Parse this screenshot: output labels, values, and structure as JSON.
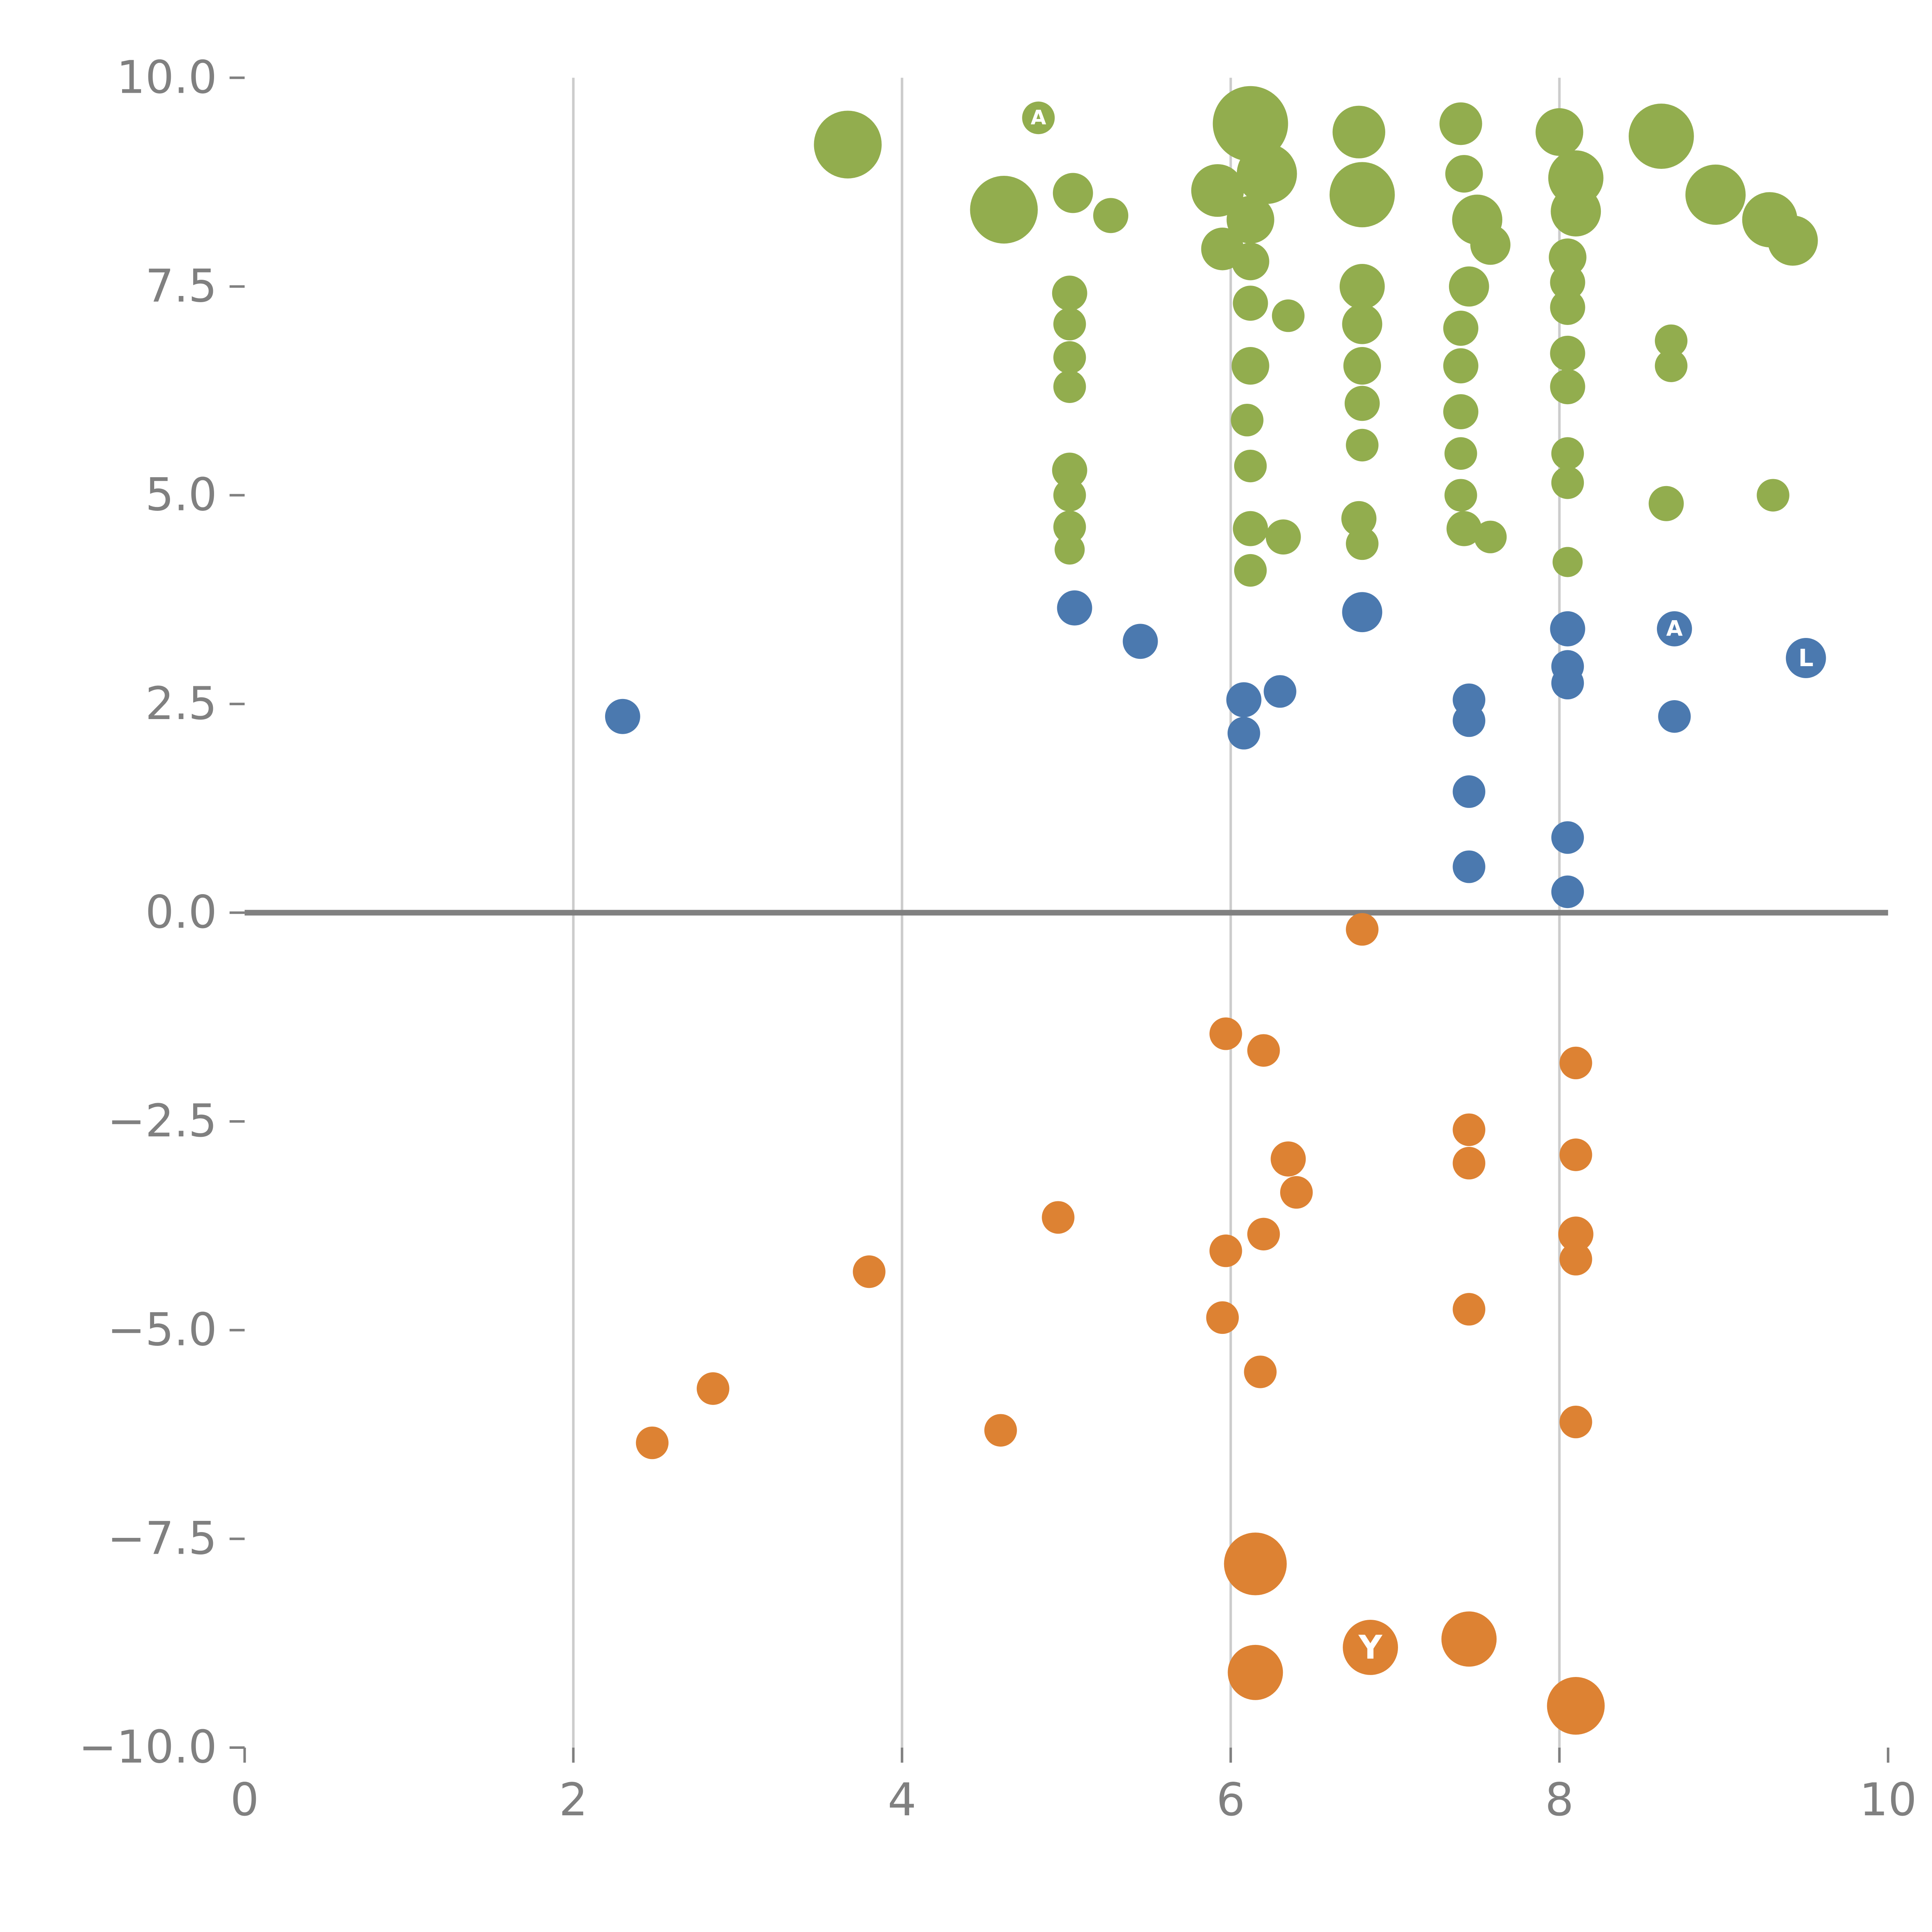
{
  "chart_data": {
    "type": "scatter",
    "title": "",
    "xlabel": "",
    "ylabel": "",
    "xlim": [
      0,
      10
    ],
    "ylim": [
      -10,
      10
    ],
    "grid": "vertical-gridlines-only",
    "grid_x": [
      2,
      4,
      6,
      8
    ],
    "legend": "none",
    "zero_line": true,
    "colors": {
      "grid": "#cccccc",
      "zero_line": "#808080",
      "tick": "#808080",
      "tick_label": "#808080",
      "bubble_label": "#ffffff",
      "background": "#ffffff"
    },
    "x_ticks": [
      {
        "value": 0,
        "label": "0"
      },
      {
        "value": 2,
        "label": "2"
      },
      {
        "value": 4,
        "label": "4"
      },
      {
        "value": 6,
        "label": "6"
      },
      {
        "value": 8,
        "label": "8"
      },
      {
        "value": 10,
        "label": "10"
      }
    ],
    "y_ticks": [
      {
        "value": -10,
        "label": "−10.0"
      },
      {
        "value": -7.5,
        "label": "−7.5"
      },
      {
        "value": -5,
        "label": "−5.0"
      },
      {
        "value": -2.5,
        "label": "−2.5"
      },
      {
        "value": 0,
        "label": "0.0"
      },
      {
        "value": 2.5,
        "label": "2.5"
      },
      {
        "value": 5,
        "label": "5.0"
      },
      {
        "value": 7.5,
        "label": "7.5"
      },
      {
        "value": 10,
        "label": "10.0"
      }
    ],
    "series": [
      {
        "name": "green",
        "color": "#92AD4E",
        "points": [
          [
            3.67,
            9.2,
            27
          ],
          [
            4.83,
            9.52,
            13,
            "A"
          ],
          [
            4.62,
            8.42,
            27
          ],
          [
            5.04,
            8.62,
            16
          ],
          [
            5.27,
            8.35,
            14
          ],
          [
            5.02,
            7.42,
            14
          ],
          [
            5.02,
            7.05,
            13
          ],
          [
            5.02,
            6.65,
            13
          ],
          [
            5.02,
            6.3,
            13
          ],
          [
            5.02,
            5.3,
            14
          ],
          [
            5.02,
            5.0,
            13
          ],
          [
            5.02,
            4.62,
            13
          ],
          [
            5.02,
            4.35,
            12
          ],
          [
            5.92,
            8.65,
            21
          ],
          [
            5.95,
            7.95,
            17
          ],
          [
            6.12,
            9.45,
            30
          ],
          [
            6.22,
            8.85,
            24
          ],
          [
            6.12,
            8.3,
            19
          ],
          [
            6.12,
            7.8,
            15
          ],
          [
            6.12,
            7.3,
            14
          ],
          [
            6.35,
            7.15,
            13
          ],
          [
            6.12,
            6.55,
            15
          ],
          [
            6.1,
            5.9,
            13
          ],
          [
            6.12,
            5.35,
            13
          ],
          [
            6.12,
            4.6,
            14
          ],
          [
            6.32,
            4.5,
            14
          ],
          [
            6.12,
            4.1,
            13
          ],
          [
            6.78,
            9.35,
            21
          ],
          [
            6.8,
            8.6,
            26
          ],
          [
            6.8,
            7.5,
            18
          ],
          [
            6.8,
            7.05,
            16
          ],
          [
            6.8,
            6.55,
            15
          ],
          [
            6.8,
            6.1,
            14
          ],
          [
            6.8,
            5.6,
            13
          ],
          [
            6.78,
            4.72,
            14
          ],
          [
            6.8,
            4.42,
            13
          ],
          [
            7.4,
            9.45,
            17
          ],
          [
            7.42,
            8.85,
            15
          ],
          [
            7.5,
            8.3,
            20
          ],
          [
            7.58,
            8.0,
            16
          ],
          [
            7.45,
            7.5,
            16
          ],
          [
            7.4,
            7.0,
            14
          ],
          [
            7.4,
            6.55,
            14
          ],
          [
            7.4,
            6.0,
            14
          ],
          [
            7.4,
            5.5,
            13
          ],
          [
            7.4,
            5.0,
            13
          ],
          [
            7.42,
            4.6,
            14
          ],
          [
            7.58,
            4.5,
            13
          ],
          [
            8.0,
            9.35,
            19
          ],
          [
            8.1,
            8.8,
            22
          ],
          [
            8.1,
            8.4,
            20
          ],
          [
            8.05,
            7.85,
            15
          ],
          [
            8.05,
            7.55,
            14
          ],
          [
            8.05,
            7.25,
            14
          ],
          [
            8.05,
            6.7,
            14
          ],
          [
            8.05,
            6.3,
            14
          ],
          [
            8.05,
            5.5,
            13
          ],
          [
            8.05,
            5.15,
            13
          ],
          [
            8.05,
            4.2,
            12
          ],
          [
            8.62,
            9.3,
            26
          ],
          [
            8.95,
            8.6,
            24
          ],
          [
            9.28,
            8.3,
            22
          ],
          [
            9.42,
            8.05,
            20
          ],
          [
            8.68,
            6.85,
            13
          ],
          [
            8.68,
            6.55,
            13
          ],
          [
            8.65,
            4.9,
            14
          ],
          [
            9.3,
            5.0,
            13
          ]
        ]
      },
      {
        "name": "blue",
        "color": "#4B79AF",
        "points": [
          [
            2.3,
            2.35,
            14
          ],
          [
            5.05,
            3.65,
            14
          ],
          [
            5.45,
            3.25,
            14
          ],
          [
            6.08,
            2.55,
            14
          ],
          [
            6.3,
            2.65,
            13
          ],
          [
            6.08,
            2.15,
            13
          ],
          [
            6.8,
            3.6,
            16
          ],
          [
            7.45,
            2.55,
            13
          ],
          [
            7.45,
            2.3,
            13
          ],
          [
            7.45,
            1.45,
            13
          ],
          [
            7.45,
            0.55,
            13
          ],
          [
            8.05,
            3.4,
            14
          ],
          [
            8.05,
            2.95,
            13
          ],
          [
            8.05,
            2.75,
            13
          ],
          [
            8.05,
            0.9,
            13
          ],
          [
            8.05,
            0.25,
            13
          ],
          [
            8.7,
            3.4,
            14,
            "A"
          ],
          [
            8.7,
            2.35,
            13
          ],
          [
            9.5,
            3.05,
            16,
            "L"
          ]
        ]
      },
      {
        "name": "orange",
        "color": "#DD8233",
        "points": [
          [
            6.8,
            -0.2,
            13
          ],
          [
            5.97,
            -1.45,
            13
          ],
          [
            6.2,
            -1.65,
            13
          ],
          [
            8.1,
            -1.8,
            13
          ],
          [
            6.35,
            -2.95,
            14
          ],
          [
            6.4,
            -3.35,
            13
          ],
          [
            7.45,
            -2.6,
            13
          ],
          [
            7.45,
            -3.0,
            13
          ],
          [
            8.1,
            -2.9,
            13
          ],
          [
            4.95,
            -3.65,
            13
          ],
          [
            6.2,
            -3.85,
            13
          ],
          [
            5.97,
            -4.05,
            13
          ],
          [
            8.1,
            -3.85,
            14
          ],
          [
            8.1,
            -4.15,
            13
          ],
          [
            3.8,
            -4.3,
            13
          ],
          [
            5.95,
            -4.85,
            13
          ],
          [
            7.45,
            -4.75,
            13
          ],
          [
            6.18,
            -5.5,
            13
          ],
          [
            2.85,
            -5.7,
            13
          ],
          [
            4.6,
            -6.2,
            13
          ],
          [
            2.48,
            -6.35,
            13
          ],
          [
            8.1,
            -6.1,
            13
          ],
          [
            6.15,
            -7.8,
            25
          ],
          [
            6.15,
            -9.1,
            22
          ],
          [
            6.85,
            -8.8,
            22,
            "Y"
          ],
          [
            7.45,
            -8.7,
            22
          ],
          [
            8.1,
            -9.5,
            23
          ]
        ]
      }
    ]
  }
}
